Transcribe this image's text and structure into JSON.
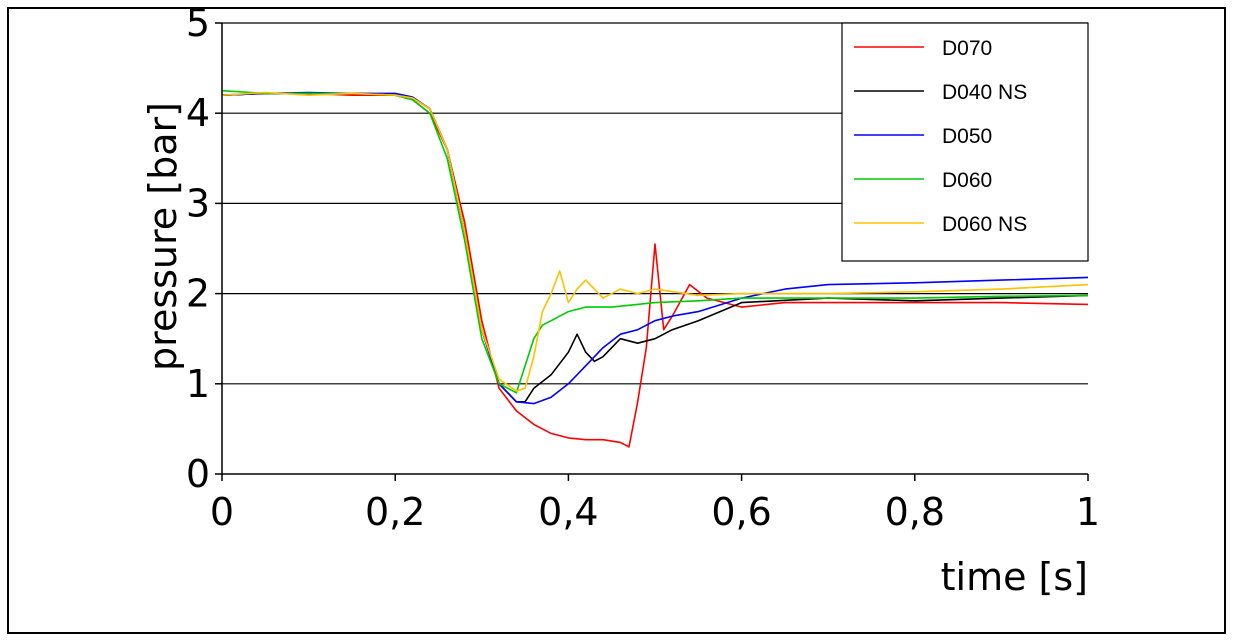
{
  "chart_data": {
    "type": "line",
    "title": "",
    "xlabel": "time [s]",
    "ylabel": "pressure [bar]",
    "xlim": [
      0,
      1
    ],
    "ylim": [
      0,
      5
    ],
    "x_ticks": [
      "0",
      "0,2",
      "0,4",
      "0,6",
      "0,8",
      "1"
    ],
    "y_ticks": [
      "0",
      "1",
      "2",
      "3",
      "4",
      "5"
    ],
    "grid": "horizontal",
    "legend_position": "top-right",
    "series": [
      {
        "name": "D070",
        "color": "#ff0000",
        "x": [
          0,
          0.05,
          0.1,
          0.15,
          0.2,
          0.22,
          0.24,
          0.26,
          0.28,
          0.3,
          0.32,
          0.34,
          0.36,
          0.38,
          0.4,
          0.42,
          0.44,
          0.46,
          0.47,
          0.48,
          0.49,
          0.5,
          0.51,
          0.52,
          0.54,
          0.56,
          0.6,
          0.65,
          0.7,
          0.8,
          0.9,
          1.0
        ],
        "y": [
          4.2,
          4.22,
          4.22,
          4.2,
          4.2,
          4.15,
          4.0,
          3.6,
          2.8,
          1.7,
          0.95,
          0.7,
          0.55,
          0.45,
          0.4,
          0.38,
          0.38,
          0.35,
          0.3,
          0.8,
          1.4,
          2.55,
          1.6,
          1.75,
          2.1,
          1.95,
          1.85,
          1.9,
          1.9,
          1.9,
          1.9,
          1.88
        ]
      },
      {
        "name": "D040 NS",
        "color": "#000000",
        "x": [
          0,
          0.05,
          0.1,
          0.15,
          0.2,
          0.22,
          0.24,
          0.26,
          0.28,
          0.3,
          0.32,
          0.34,
          0.35,
          0.36,
          0.38,
          0.4,
          0.41,
          0.42,
          0.43,
          0.44,
          0.45,
          0.46,
          0.48,
          0.5,
          0.52,
          0.55,
          0.6,
          0.7,
          0.8,
          0.9,
          1.0
        ],
        "y": [
          4.2,
          4.22,
          4.22,
          4.22,
          4.2,
          4.17,
          4.05,
          3.6,
          2.7,
          1.6,
          1.0,
          0.8,
          0.8,
          0.95,
          1.1,
          1.35,
          1.55,
          1.35,
          1.25,
          1.3,
          1.4,
          1.5,
          1.45,
          1.5,
          1.6,
          1.7,
          1.9,
          1.95,
          1.92,
          1.95,
          1.98
        ]
      },
      {
        "name": "D050",
        "color": "#0000ff",
        "x": [
          0,
          0.05,
          0.1,
          0.15,
          0.2,
          0.22,
          0.24,
          0.26,
          0.28,
          0.3,
          0.32,
          0.34,
          0.36,
          0.38,
          0.4,
          0.42,
          0.44,
          0.46,
          0.48,
          0.5,
          0.52,
          0.55,
          0.6,
          0.65,
          0.7,
          0.8,
          0.9,
          1.0
        ],
        "y": [
          4.2,
          4.22,
          4.23,
          4.22,
          4.22,
          4.18,
          4.05,
          3.6,
          2.7,
          1.6,
          1.0,
          0.8,
          0.78,
          0.85,
          1.0,
          1.2,
          1.4,
          1.55,
          1.6,
          1.7,
          1.75,
          1.8,
          1.95,
          2.05,
          2.1,
          2.12,
          2.15,
          2.18
        ]
      },
      {
        "name": "D060",
        "color": "#00cc00",
        "x": [
          0,
          0.05,
          0.1,
          0.15,
          0.2,
          0.22,
          0.24,
          0.26,
          0.28,
          0.3,
          0.32,
          0.34,
          0.35,
          0.36,
          0.37,
          0.38,
          0.4,
          0.42,
          0.45,
          0.5,
          0.55,
          0.6,
          0.7,
          0.8,
          0.9,
          1.0
        ],
        "y": [
          4.25,
          4.22,
          4.22,
          4.22,
          4.2,
          4.15,
          4.0,
          3.5,
          2.6,
          1.5,
          1.0,
          0.9,
          1.2,
          1.5,
          1.65,
          1.7,
          1.8,
          1.85,
          1.85,
          1.9,
          1.92,
          1.95,
          1.95,
          1.95,
          1.97,
          1.98
        ]
      },
      {
        "name": "D060 NS",
        "color": "#ffc000",
        "x": [
          0,
          0.05,
          0.1,
          0.15,
          0.2,
          0.22,
          0.24,
          0.26,
          0.28,
          0.3,
          0.32,
          0.34,
          0.35,
          0.36,
          0.37,
          0.38,
          0.39,
          0.4,
          0.41,
          0.42,
          0.44,
          0.46,
          0.48,
          0.5,
          0.55,
          0.6,
          0.7,
          0.8,
          0.9,
          1.0
        ],
        "y": [
          4.2,
          4.23,
          4.2,
          4.22,
          4.2,
          4.17,
          4.05,
          3.6,
          2.7,
          1.6,
          1.05,
          0.92,
          0.95,
          1.3,
          1.8,
          2.0,
          2.25,
          1.9,
          2.05,
          2.15,
          1.95,
          2.05,
          2.0,
          2.05,
          1.98,
          2.0,
          2.0,
          2.02,
          2.05,
          2.1
        ]
      }
    ]
  }
}
